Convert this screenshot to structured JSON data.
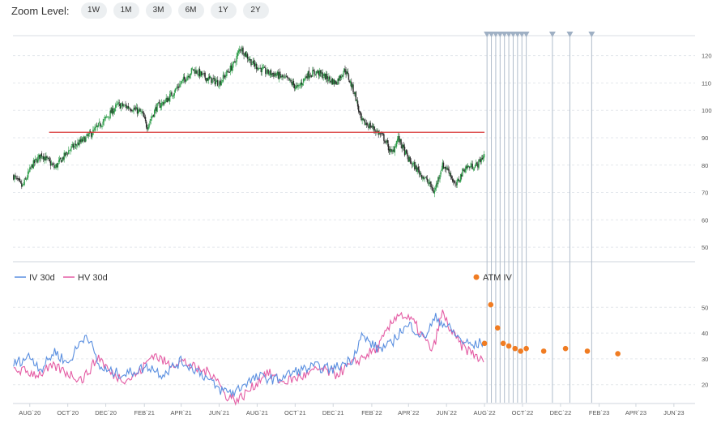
{
  "zoom": {
    "label": "Zoom Level:",
    "buttons": [
      "1W",
      "1M",
      "3M",
      "6M",
      "1Y",
      "2Y"
    ]
  },
  "colors": {
    "up": "#2e9d4a",
    "down": "#2b2b2b",
    "hline": "#d93a3a",
    "iv": "#5a8fe0",
    "hv": "#e45ca4",
    "atm": "#f07c22",
    "expiry": "#b0bccb"
  },
  "chart_data": [
    {
      "type": "candlestick",
      "title": "",
      "x_axis": {
        "type": "date",
        "range": [
          "2020-07-05",
          "2023-07-05"
        ],
        "tick_labels": [
          "AUG`20",
          "OCT`20",
          "DEC`20",
          "FEB`21",
          "APR`21",
          "JUN`21",
          "AUG`21",
          "OCT`21",
          "DEC`21",
          "FEB`22",
          "APR`22",
          "JUN`22",
          "AUG`22",
          "OCT`22",
          "DEC`22",
          "FEB`23",
          "APR`23",
          "JUN`23"
        ],
        "tick_dates": [
          "2020-08-01",
          "2020-10-01",
          "2020-12-01",
          "2021-02-01",
          "2021-04-01",
          "2021-06-01",
          "2021-08-01",
          "2021-10-01",
          "2021-12-01",
          "2022-02-01",
          "2022-04-01",
          "2022-06-01",
          "2022-08-01",
          "2022-10-01",
          "2022-12-01",
          "2023-02-01",
          "2023-04-01",
          "2023-06-01"
        ]
      },
      "y_axis": {
        "side": "right",
        "range": [
          45,
          127
        ],
        "ticks": [
          50,
          60,
          70,
          80,
          90,
          100,
          110,
          120
        ]
      },
      "close_anchors": [
        [
          "2020-07-06",
          76
        ],
        [
          "2020-07-20",
          72
        ],
        [
          "2020-08-05",
          80
        ],
        [
          "2020-08-20",
          84
        ],
        [
          "2020-09-10",
          79
        ],
        [
          "2020-10-05",
          86
        ],
        [
          "2020-10-25",
          89
        ],
        [
          "2020-11-10",
          92
        ],
        [
          "2020-12-01",
          97
        ],
        [
          "2020-12-20",
          102
        ],
        [
          "2021-01-10",
          101
        ],
        [
          "2021-01-28",
          99
        ],
        [
          "2021-02-05",
          94
        ],
        [
          "2021-02-20",
          101
        ],
        [
          "2021-03-10",
          104
        ],
        [
          "2021-04-01",
          110
        ],
        [
          "2021-04-20",
          115
        ],
        [
          "2021-05-10",
          112
        ],
        [
          "2021-06-01",
          110
        ],
        [
          "2021-06-25",
          117
        ],
        [
          "2021-07-05",
          123
        ],
        [
          "2021-07-25",
          117
        ],
        [
          "2021-08-15",
          114
        ],
        [
          "2021-09-01",
          113
        ],
        [
          "2021-09-20",
          111
        ],
        [
          "2021-10-05",
          108
        ],
        [
          "2021-10-20",
          113
        ],
        [
          "2021-11-05",
          114
        ],
        [
          "2021-11-20",
          112
        ],
        [
          "2021-12-05",
          110
        ],
        [
          "2021-12-20",
          115
        ],
        [
          "2022-01-05",
          106
        ],
        [
          "2022-01-15",
          96
        ],
        [
          "2022-02-01",
          94
        ],
        [
          "2022-02-20",
          90
        ],
        [
          "2022-03-05",
          84
        ],
        [
          "2022-03-15",
          90
        ],
        [
          "2022-04-01",
          82
        ],
        [
          "2022-04-20",
          77
        ],
        [
          "2022-05-05",
          73
        ],
        [
          "2022-05-12",
          70
        ],
        [
          "2022-05-25",
          80
        ],
        [
          "2022-06-05",
          78
        ],
        [
          "2022-06-15",
          72
        ],
        [
          "2022-06-30",
          79
        ],
        [
          "2022-07-20",
          80
        ],
        [
          "2022-08-01",
          84
        ]
      ],
      "horizontal_line": {
        "value": 92,
        "from": "2020-09-01",
        "to": "2022-08-01"
      }
    },
    {
      "type": "line",
      "x_axis": "shared",
      "y_axis": {
        "side": "right",
        "range": [
          13,
          57
        ],
        "ticks": [
          20,
          30,
          40,
          50
        ]
      },
      "legend": {
        "placement": "top-left"
      },
      "series": [
        {
          "name": "IV 30d",
          "anchors": [
            [
              "2020-07-06",
              28
            ],
            [
              "2020-08-01",
              31
            ],
            [
              "2020-08-20",
              26
            ],
            [
              "2020-09-10",
              33
            ],
            [
              "2020-10-01",
              28
            ],
            [
              "2020-10-20",
              36
            ],
            [
              "2020-11-01",
              40
            ],
            [
              "2020-11-20",
              27
            ],
            [
              "2020-12-05",
              25
            ],
            [
              "2021-01-01",
              24
            ],
            [
              "2021-01-25",
              26
            ],
            [
              "2021-02-10",
              27
            ],
            [
              "2021-03-01",
              24
            ],
            [
              "2021-04-01",
              29
            ],
            [
              "2021-05-01",
              25
            ],
            [
              "2021-06-01",
              18
            ],
            [
              "2021-06-25",
              17
            ],
            [
              "2021-07-15",
              21
            ],
            [
              "2021-08-05",
              23
            ],
            [
              "2021-09-01",
              22
            ],
            [
              "2021-10-01",
              25
            ],
            [
              "2021-11-01",
              27
            ],
            [
              "2021-12-01",
              26
            ],
            [
              "2022-01-01",
              30
            ],
            [
              "2022-01-15",
              39
            ],
            [
              "2022-02-10",
              34
            ],
            [
              "2022-03-01",
              35
            ],
            [
              "2022-03-20",
              41
            ],
            [
              "2022-04-05",
              43
            ],
            [
              "2022-04-25",
              38
            ],
            [
              "2022-05-15",
              46
            ],
            [
              "2022-06-05",
              42
            ],
            [
              "2022-06-25",
              37
            ],
            [
              "2022-07-15",
              35
            ],
            [
              "2022-08-01",
              37
            ]
          ]
        },
        {
          "name": "HV 30d",
          "anchors": [
            [
              "2020-07-06",
              26
            ],
            [
              "2020-08-15",
              24
            ],
            [
              "2020-09-10",
              27
            ],
            [
              "2020-10-05",
              24
            ],
            [
              "2020-10-25",
              22
            ],
            [
              "2020-11-20",
              31
            ],
            [
              "2020-12-10",
              24
            ],
            [
              "2021-01-05",
              22
            ],
            [
              "2021-01-25",
              25
            ],
            [
              "2021-02-15",
              32
            ],
            [
              "2021-03-10",
              28
            ],
            [
              "2021-04-05",
              29
            ],
            [
              "2021-04-25",
              26
            ],
            [
              "2021-05-25",
              24
            ],
            [
              "2021-06-10",
              16
            ],
            [
              "2021-07-01",
              14
            ],
            [
              "2021-07-25",
              19
            ],
            [
              "2021-08-15",
              25
            ],
            [
              "2021-09-10",
              21
            ],
            [
              "2021-10-10",
              23
            ],
            [
              "2021-11-10",
              26
            ],
            [
              "2021-12-05",
              24
            ],
            [
              "2022-01-01",
              28
            ],
            [
              "2022-01-20",
              31
            ],
            [
              "2022-02-10",
              34
            ],
            [
              "2022-03-01",
              42
            ],
            [
              "2022-03-15",
              48
            ],
            [
              "2022-04-10",
              44
            ],
            [
              "2022-04-25",
              38
            ],
            [
              "2022-05-10",
              33
            ],
            [
              "2022-05-25",
              48
            ],
            [
              "2022-06-10",
              40
            ],
            [
              "2022-06-25",
              35
            ],
            [
              "2022-07-20",
              31
            ],
            [
              "2022-08-01",
              28
            ]
          ]
        },
        {
          "name": "ATM IV",
          "style": "points",
          "points": [
            [
              "2022-08-01",
              36
            ],
            [
              "2022-08-11",
              51
            ],
            [
              "2022-08-22",
              42
            ],
            [
              "2022-08-31",
              36
            ],
            [
              "2022-09-09",
              35
            ],
            [
              "2022-09-19",
              34
            ],
            [
              "2022-09-28",
              33
            ],
            [
              "2022-10-07",
              34
            ],
            [
              "2022-11-04",
              33
            ],
            [
              "2022-12-09",
              34
            ],
            [
              "2023-01-13",
              33
            ],
            [
              "2023-03-03",
              32
            ]
          ]
        }
      ]
    }
  ],
  "expirations": [
    "2022-08-05",
    "2022-08-12",
    "2022-08-19",
    "2022-08-26",
    "2022-09-02",
    "2022-09-09",
    "2022-09-16",
    "2022-09-23",
    "2022-09-30",
    "2022-10-07",
    "2022-11-18",
    "2022-12-16",
    "2023-01-20"
  ]
}
